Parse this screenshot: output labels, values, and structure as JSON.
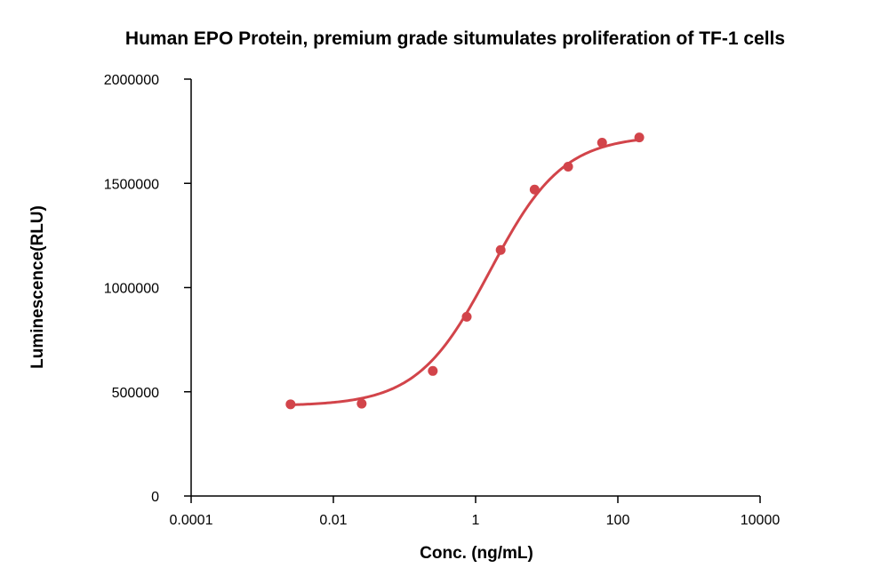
{
  "chart_data": {
    "type": "scatter",
    "title": "Human EPO Protein, premium grade situmulates proliferation of TF-1 cells",
    "xlabel": "Conc. (ng/mL)",
    "ylabel": "Luminescence(RLU)",
    "x_scale": "log",
    "xlim": [
      0.0001,
      10000
    ],
    "ylim": [
      0,
      2000000
    ],
    "x_ticks": [
      0.0001,
      0.01,
      1,
      100,
      10000
    ],
    "x_tick_labels": [
      "0.0001",
      "0.01",
      "1",
      "100",
      "10000"
    ],
    "y_ticks": [
      0,
      500000,
      1000000,
      1500000,
      2000000
    ],
    "y_tick_labels": [
      "0",
      "500000",
      "1000000",
      "1500000",
      "2000000"
    ],
    "grid": false,
    "legend": "none",
    "series": [
      {
        "color": "#d2444a",
        "x": [
          0.0025,
          0.025,
          0.25,
          0.75,
          2.25,
          6.75,
          20,
          60,
          200
        ],
        "y": [
          440000,
          443000,
          600000,
          860000,
          1180000,
          1470000,
          1580000,
          1695000,
          1720000
        ],
        "fit": {
          "type": "4PL",
          "x_range": [
            0.0025,
            200
          ],
          "bottom": 432000,
          "top": 1730000,
          "ec50": 1.6,
          "hill": 0.85
        }
      }
    ]
  }
}
